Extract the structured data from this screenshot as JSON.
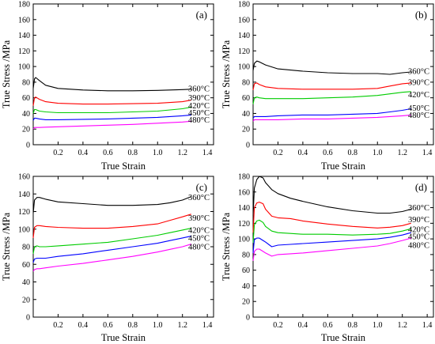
{
  "chart_data": [
    {
      "type": "line",
      "panel_label": "(a)",
      "xlabel": "True Strain",
      "ylabel": "True Stress /MPa",
      "xlim": [
        0,
        1.45
      ],
      "ylim": [
        0,
        180
      ],
      "x_ticks": [
        0.2,
        0.4,
        0.6,
        0.8,
        1.0,
        1.2,
        1.4
      ],
      "x_tick_labels": [
        "0.2",
        "0.4",
        "0.6",
        "0.8",
        "1.0",
        "1.2",
        "1.4"
      ],
      "y_ticks": [
        0,
        20,
        40,
        60,
        80,
        100,
        120,
        140,
        160,
        180
      ],
      "y_tick_labels": [
        "0",
        "20",
        "40",
        "60",
        "80",
        "100",
        "120",
        "140",
        "160",
        "180"
      ],
      "grid": false,
      "series": [
        {
          "name": "360°C",
          "color": "#000000",
          "label_y": 72,
          "x": [
            0,
            0.01,
            0.02,
            0.05,
            0.1,
            0.2,
            0.4,
            0.6,
            0.8,
            1.0,
            1.2,
            1.27
          ],
          "y": [
            72,
            84,
            86,
            82,
            76,
            72,
            70,
            69,
            69,
            69.5,
            70.5,
            71
          ]
        },
        {
          "name": "390°C",
          "color": "#ff0000",
          "label_y": 60,
          "x": [
            0,
            0.01,
            0.02,
            0.05,
            0.1,
            0.2,
            0.4,
            0.6,
            0.8,
            1.0,
            1.2,
            1.27
          ],
          "y": [
            50,
            60,
            61,
            58,
            55,
            53,
            52,
            52,
            52.5,
            53,
            55,
            57
          ]
        },
        {
          "name": "420°C",
          "color": "#00cc00",
          "label_y": 50,
          "x": [
            0,
            0.01,
            0.02,
            0.05,
            0.1,
            0.2,
            0.4,
            0.6,
            0.8,
            1.0,
            1.2,
            1.27
          ],
          "y": [
            40,
            45,
            45,
            43,
            42,
            41,
            41,
            41,
            42,
            43,
            46,
            48
          ]
        },
        {
          "name": "450°C",
          "color": "#0000ff",
          "label_y": 41,
          "x": [
            0,
            0.01,
            0.02,
            0.05,
            0.1,
            0.2,
            0.4,
            0.6,
            0.8,
            1.0,
            1.2,
            1.27
          ],
          "y": [
            31,
            34,
            34,
            33,
            32,
            32,
            32.5,
            33,
            34,
            35,
            37,
            38
          ]
        },
        {
          "name": "480°C",
          "color": "#ff00ff",
          "label_y": 32,
          "x": [
            0,
            0.01,
            0.02,
            0.05,
            0.1,
            0.2,
            0.4,
            0.6,
            0.8,
            1.0,
            1.2,
            1.27
          ],
          "y": [
            20,
            22,
            22,
            22,
            22.5,
            23,
            24,
            25,
            26,
            27.5,
            29,
            30
          ]
        }
      ]
    },
    {
      "type": "line",
      "panel_label": "(b)",
      "xlabel": "True Strain",
      "ylabel": "True Stress /MPa",
      "xlim": [
        0,
        1.45
      ],
      "ylim": [
        0,
        180
      ],
      "x_ticks": [
        0.2,
        0.4,
        0.6,
        0.8,
        1.0,
        1.2,
        1.4
      ],
      "x_tick_labels": [
        "0.2",
        "0.4",
        "0.6",
        "0.8",
        "1.0",
        "1.2",
        "1.4"
      ],
      "y_ticks": [
        0,
        20,
        40,
        60,
        80,
        100,
        120,
        140,
        160,
        180
      ],
      "y_tick_labels": [
        "0",
        "20",
        "40",
        "60",
        "80",
        "100",
        "120",
        "140",
        "160",
        "180"
      ],
      "grid": false,
      "series": [
        {
          "name": "360°C",
          "color": "#000000",
          "label_y": 94,
          "x": [
            0,
            0.01,
            0.03,
            0.05,
            0.1,
            0.2,
            0.4,
            0.6,
            0.8,
            1.0,
            1.1,
            1.2,
            1.27
          ],
          "y": [
            95,
            104,
            107,
            106,
            102,
            97,
            94,
            92,
            91,
            91,
            90,
            92,
            93
          ]
        },
        {
          "name": "390°C",
          "color": "#ff0000",
          "label_y": 80,
          "x": [
            0,
            0.01,
            0.03,
            0.05,
            0.1,
            0.2,
            0.4,
            0.6,
            0.8,
            1.0,
            1.1,
            1.2,
            1.27
          ],
          "y": [
            70,
            78,
            79,
            77,
            74,
            72,
            71,
            71,
            71,
            72,
            75,
            78,
            79
          ]
        },
        {
          "name": "420°C",
          "color": "#00cc00",
          "label_y": 64,
          "x": [
            0,
            0.01,
            0.03,
            0.05,
            0.1,
            0.2,
            0.4,
            0.6,
            0.8,
            1.0,
            1.1,
            1.2,
            1.27
          ],
          "y": [
            52,
            60,
            61,
            60,
            59,
            59,
            59,
            60,
            61,
            63,
            65,
            67,
            68
          ]
        },
        {
          "name": "450°C",
          "color": "#0000ff",
          "label_y": 47,
          "x": [
            0,
            0.01,
            0.03,
            0.05,
            0.1,
            0.2,
            0.4,
            0.6,
            0.8,
            1.0,
            1.1,
            1.2,
            1.27
          ],
          "y": [
            34,
            36,
            36,
            36,
            36,
            37,
            38,
            38,
            39,
            40,
            42,
            44,
            46
          ]
        },
        {
          "name": "480°C",
          "color": "#ff00ff",
          "label_y": 38,
          "x": [
            0,
            0.01,
            0.03,
            0.05,
            0.1,
            0.2,
            0.4,
            0.6,
            0.8,
            1.0,
            1.1,
            1.2,
            1.27
          ],
          "y": [
            30,
            32,
            32,
            32,
            32,
            32,
            33,
            33,
            34,
            35,
            36,
            37,
            38
          ]
        }
      ]
    },
    {
      "type": "line",
      "panel_label": "(c)",
      "xlabel": "True Strain",
      "ylabel": "True Stress /MPa",
      "xlim": [
        0,
        1.45
      ],
      "ylim": [
        0,
        160
      ],
      "x_ticks": [
        0.2,
        0.4,
        0.6,
        0.8,
        1.0,
        1.2,
        1.4
      ],
      "x_tick_labels": [
        "0.2",
        "0.4",
        "0.6",
        "0.8",
        "1.0",
        "1.2",
        "1.4"
      ],
      "y_ticks": [
        0,
        20,
        40,
        60,
        80,
        100,
        120,
        140,
        160
      ],
      "y_tick_labels": [
        "0",
        "20",
        "40",
        "60",
        "80",
        "100",
        "120",
        "140",
        "160"
      ],
      "grid": false,
      "series": [
        {
          "name": "360°C",
          "color": "#000000",
          "label_y": 136,
          "x": [
            0,
            0.01,
            0.03,
            0.05,
            0.1,
            0.2,
            0.4,
            0.6,
            0.8,
            1.0,
            1.1,
            1.2,
            1.27
          ],
          "y": [
            118,
            133,
            136,
            136,
            134,
            131,
            129,
            127,
            127,
            128,
            130,
            133,
            137
          ]
        },
        {
          "name": "390°C",
          "color": "#ff0000",
          "label_y": 113,
          "x": [
            0,
            0.01,
            0.03,
            0.05,
            0.1,
            0.2,
            0.4,
            0.6,
            0.8,
            1.0,
            1.1,
            1.2,
            1.27
          ],
          "y": [
            90,
            102,
            104,
            104,
            103,
            102,
            101,
            101,
            103,
            106,
            110,
            114,
            117
          ]
        },
        {
          "name": "420°C",
          "color": "#00cc00",
          "label_y": 99,
          "x": [
            0,
            0.01,
            0.03,
            0.05,
            0.1,
            0.2,
            0.4,
            0.6,
            0.8,
            1.0,
            1.1,
            1.2,
            1.27
          ],
          "y": [
            72,
            80,
            81,
            80,
            80,
            81,
            83,
            85,
            89,
            93,
            96,
            99,
            101
          ]
        },
        {
          "name": "450°C",
          "color": "#0000ff",
          "label_y": 90,
          "x": [
            0,
            0.01,
            0.03,
            0.05,
            0.1,
            0.2,
            0.4,
            0.6,
            0.8,
            1.0,
            1.1,
            1.2,
            1.27
          ],
          "y": [
            62,
            66,
            67,
            67,
            67,
            69,
            72,
            76,
            80,
            84,
            87,
            90,
            92
          ]
        },
        {
          "name": "480°C",
          "color": "#ff00ff",
          "label_y": 80,
          "x": [
            0,
            0.01,
            0.03,
            0.05,
            0.1,
            0.2,
            0.4,
            0.6,
            0.8,
            1.0,
            1.1,
            1.2,
            1.27
          ],
          "y": [
            52,
            54,
            55,
            55,
            56,
            58,
            61,
            65,
            69,
            74,
            77,
            80,
            83
          ]
        }
      ]
    },
    {
      "type": "line",
      "panel_label": "(d)",
      "xlabel": "True Strain",
      "ylabel": "True Stress /MPa",
      "xlim": [
        0,
        1.45
      ],
      "ylim": [
        0,
        180
      ],
      "x_ticks": [
        0.2,
        0.4,
        0.6,
        0.8,
        1.0,
        1.2,
        1.4
      ],
      "x_tick_labels": [
        "0.2",
        "0.4",
        "0.6",
        "0.8",
        "1.0",
        "1.2",
        "1.4"
      ],
      "y_ticks": [
        0,
        20,
        40,
        60,
        80,
        100,
        120,
        140,
        160,
        180
      ],
      "y_tick_labels": [
        "0",
        "20",
        "40",
        "60",
        "80",
        "100",
        "120",
        "140",
        "160",
        "180"
      ],
      "grid": false,
      "series": [
        {
          "name": "360°C",
          "color": "#000000",
          "label_y": 140,
          "x": [
            0,
            0.01,
            0.03,
            0.05,
            0.08,
            0.1,
            0.15,
            0.2,
            0.3,
            0.4,
            0.6,
            0.8,
            1.0,
            1.1,
            1.2,
            1.27
          ],
          "y": [
            130,
            165,
            176,
            180,
            178,
            172,
            163,
            158,
            152,
            148,
            141,
            136,
            133,
            133,
            135,
            138
          ]
        },
        {
          "name": "390°C",
          "color": "#ff0000",
          "label_y": 125,
          "x": [
            0,
            0.01,
            0.03,
            0.05,
            0.08,
            0.1,
            0.15,
            0.2,
            0.3,
            0.4,
            0.6,
            0.8,
            1.0,
            1.1,
            1.2,
            1.27
          ],
          "y": [
            108,
            140,
            146,
            147,
            145,
            138,
            129,
            127,
            126,
            123,
            119,
            116,
            114,
            115,
            117,
            120
          ]
        },
        {
          "name": "420°C",
          "color": "#00cc00",
          "label_y": 112,
          "x": [
            0,
            0.01,
            0.03,
            0.05,
            0.08,
            0.1,
            0.15,
            0.2,
            0.3,
            0.4,
            0.6,
            0.8,
            1.0,
            1.1,
            1.2,
            1.27
          ],
          "y": [
            95,
            118,
            123,
            124,
            121,
            116,
            110,
            108,
            107,
            106,
            106,
            105,
            106,
            107,
            110,
            113
          ]
        },
        {
          "name": "450°C",
          "color": "#0000ff",
          "label_y": 103,
          "x": [
            0,
            0.01,
            0.03,
            0.05,
            0.08,
            0.1,
            0.15,
            0.2,
            0.3,
            0.4,
            0.6,
            0.8,
            1.0,
            1.1,
            1.2,
            1.27
          ],
          "y": [
            82,
            99,
            101,
            101,
            98,
            96,
            90,
            92,
            93,
            94,
            96,
            98,
            100,
            102,
            105,
            108
          ]
        },
        {
          "name": "480°C",
          "color": "#ff00ff",
          "label_y": 92,
          "x": [
            0,
            0.01,
            0.03,
            0.05,
            0.08,
            0.1,
            0.15,
            0.2,
            0.3,
            0.4,
            0.6,
            0.8,
            1.0,
            1.1,
            1.2,
            1.27
          ],
          "y": [
            72,
            84,
            87,
            87,
            84,
            82,
            78,
            80,
            81,
            82,
            85,
            88,
            91,
            94,
            98,
            101
          ]
        }
      ]
    }
  ]
}
